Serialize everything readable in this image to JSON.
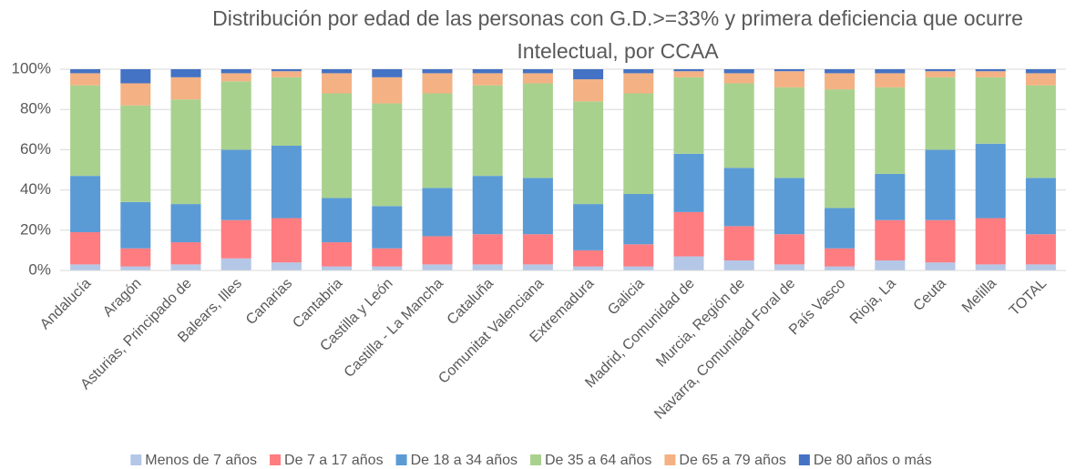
{
  "chart_data": {
    "type": "stacked_bar",
    "title": [
      "Distribución por edad de las personas con G.D.>=33% y primera deficiencia que ocurre",
      "Intelectual, por CCAA"
    ],
    "categories": [
      "Andalucía",
      "Aragón",
      "Asturias, Principado de",
      "Balears, Illes",
      "Canarias",
      "Cantabria",
      "Castilla y León",
      "Castilla - La Mancha",
      "Cataluña",
      "Comunitat Valenciana",
      "Extremadura",
      "Galicia",
      "Madrid, Comunidad de",
      "Murcia, Región de",
      "Navarra, Comunidad Foral de",
      "País Vasco",
      "Rioja, La",
      "Ceuta",
      "Melilla",
      "TOTAL"
    ],
    "series": [
      {
        "name": "Menos de 7 años",
        "color": "#b4c7e7",
        "values": [
          3,
          2,
          3,
          6,
          4,
          2,
          2,
          3,
          3,
          3,
          2,
          2,
          7,
          5,
          3,
          2,
          5,
          4,
          3,
          3
        ]
      },
      {
        "name": "De 7 a 17 años",
        "color": "#ff7c80",
        "values": [
          16,
          9,
          11,
          19,
          22,
          12,
          9,
          14,
          15,
          15,
          8,
          11,
          22,
          17,
          15,
          9,
          20,
          21,
          23,
          15
        ]
      },
      {
        "name": "De 18 a 34 años",
        "color": "#5b9bd5",
        "values": [
          28,
          23,
          19,
          35,
          36,
          22,
          21,
          24,
          29,
          28,
          23,
          25,
          29,
          29,
          28,
          20,
          23,
          35,
          37,
          28
        ]
      },
      {
        "name": "De 35 a 64 años",
        "color": "#a9d18e",
        "values": [
          45,
          48,
          52,
          34,
          34,
          52,
          51,
          47,
          45,
          47,
          51,
          50,
          38,
          42,
          45,
          59,
          43,
          36,
          33,
          46
        ]
      },
      {
        "name": "De 65 a 79 años",
        "color": "#f4b183",
        "values": [
          6,
          11,
          11,
          4,
          3,
          10,
          13,
          10,
          6,
          5,
          11,
          10,
          3,
          5,
          8,
          8,
          7,
          3,
          3,
          6
        ]
      },
      {
        "name": "De 80 años o más",
        "color": "#4472c4",
        "values": [
          2,
          7,
          4,
          2,
          1,
          2,
          4,
          2,
          2,
          2,
          5,
          2,
          1,
          2,
          1,
          2,
          2,
          1,
          1,
          2
        ]
      }
    ],
    "ylim": [
      0,
      100
    ],
    "yticks": [
      {
        "value": 0,
        "label": "0%"
      },
      {
        "value": 20,
        "label": "20%"
      },
      {
        "value": 40,
        "label": "40%"
      },
      {
        "value": 60,
        "label": "60%"
      },
      {
        "value": 80,
        "label": "80%"
      },
      {
        "value": 100,
        "label": "100%"
      }
    ],
    "grid": true,
    "legend": "bottom"
  }
}
